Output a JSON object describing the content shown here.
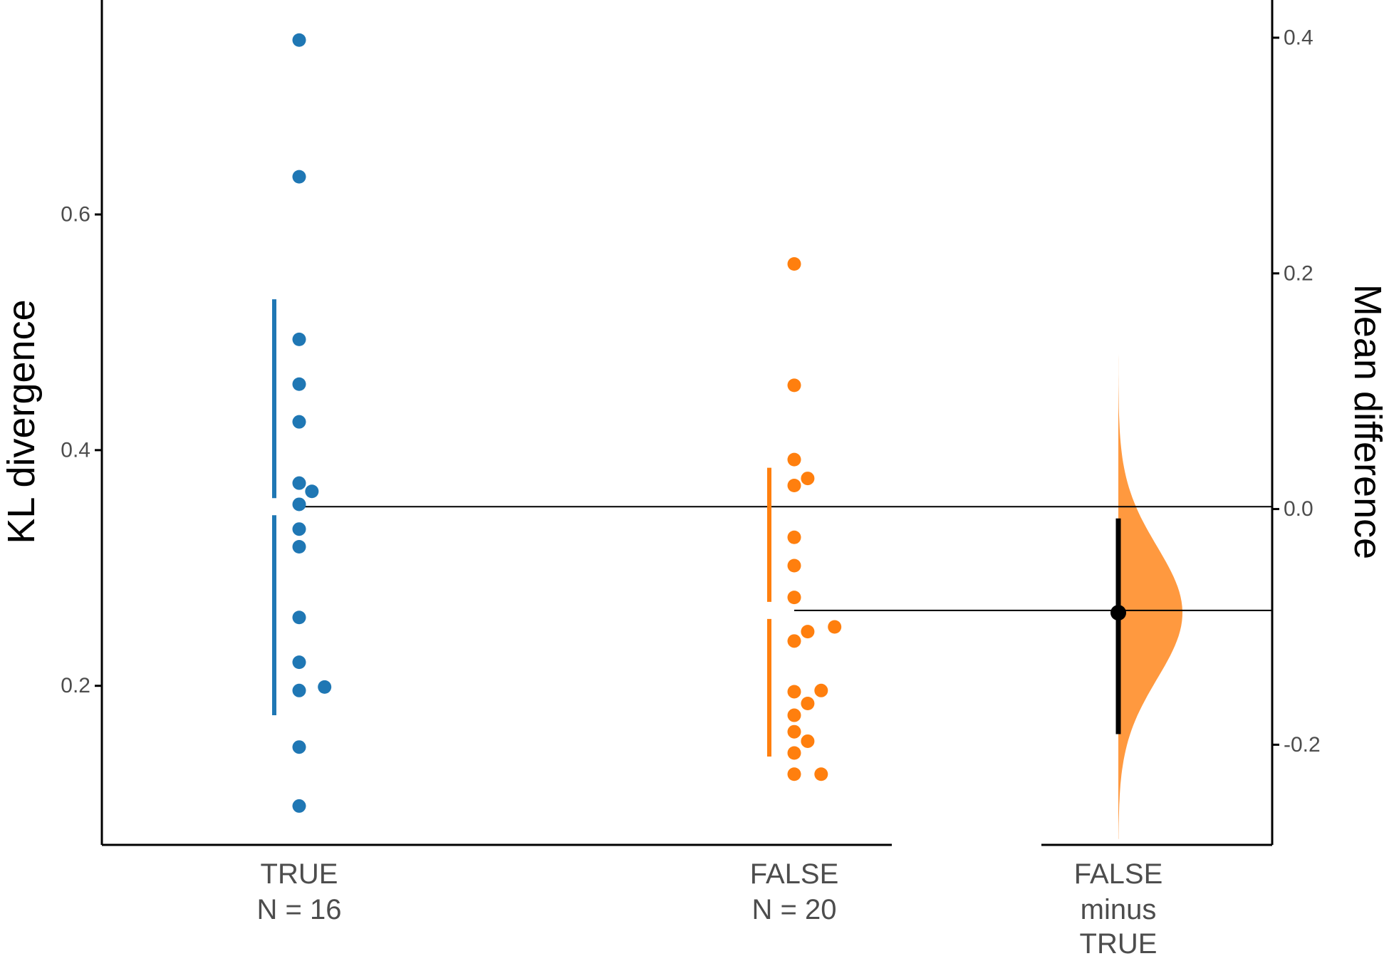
{
  "chart_data": {
    "type": "scatter",
    "subtype": "estimation-plot",
    "ylabel": "KL divergence",
    "ylabel_right": "Mean difference",
    "y_ticks": [
      "0.2",
      "0.4",
      "0.6"
    ],
    "y_right_ticks": [
      "-0.2",
      "0.0",
      "0.2",
      "0.4"
    ],
    "ylim": [
      0.065,
      0.782
    ],
    "ylim_right": [
      -0.285,
      0.432
    ],
    "grid": false,
    "legend": "none",
    "groups": [
      {
        "key": "true",
        "label_line1": "TRUE",
        "label_line2": "N = 16",
        "color": "#1f77b4",
        "values": [
          0.098,
          0.148,
          0.196,
          0.199,
          0.22,
          0.258,
          0.318,
          0.333,
          0.354,
          0.365,
          0.372,
          0.424,
          0.456,
          0.494,
          0.632,
          0.748
        ],
        "mean": 0.352,
        "sd_low": 0.175,
        "sd_high": 0.528
      },
      {
        "key": "false",
        "label_line1": "FALSE",
        "label_line2": "N = 20",
        "color": "#ff7f0e",
        "values": [
          0.125,
          0.125,
          0.143,
          0.153,
          0.161,
          0.175,
          0.185,
          0.195,
          0.196,
          0.238,
          0.246,
          0.25,
          0.275,
          0.302,
          0.326,
          0.37,
          0.376,
          0.392,
          0.455,
          0.558
        ],
        "mean": 0.264,
        "sd_low": 0.14,
        "sd_high": 0.385
      }
    ],
    "difference": {
      "label_line1": "FALSE",
      "label_line2": "minus",
      "label_line3": "TRUE",
      "color": "#ff993f",
      "mean_diff": -0.088,
      "ci_low": -0.191,
      "ci_high": -0.008,
      "density_range": [
        -0.28,
        0.14
      ]
    }
  }
}
